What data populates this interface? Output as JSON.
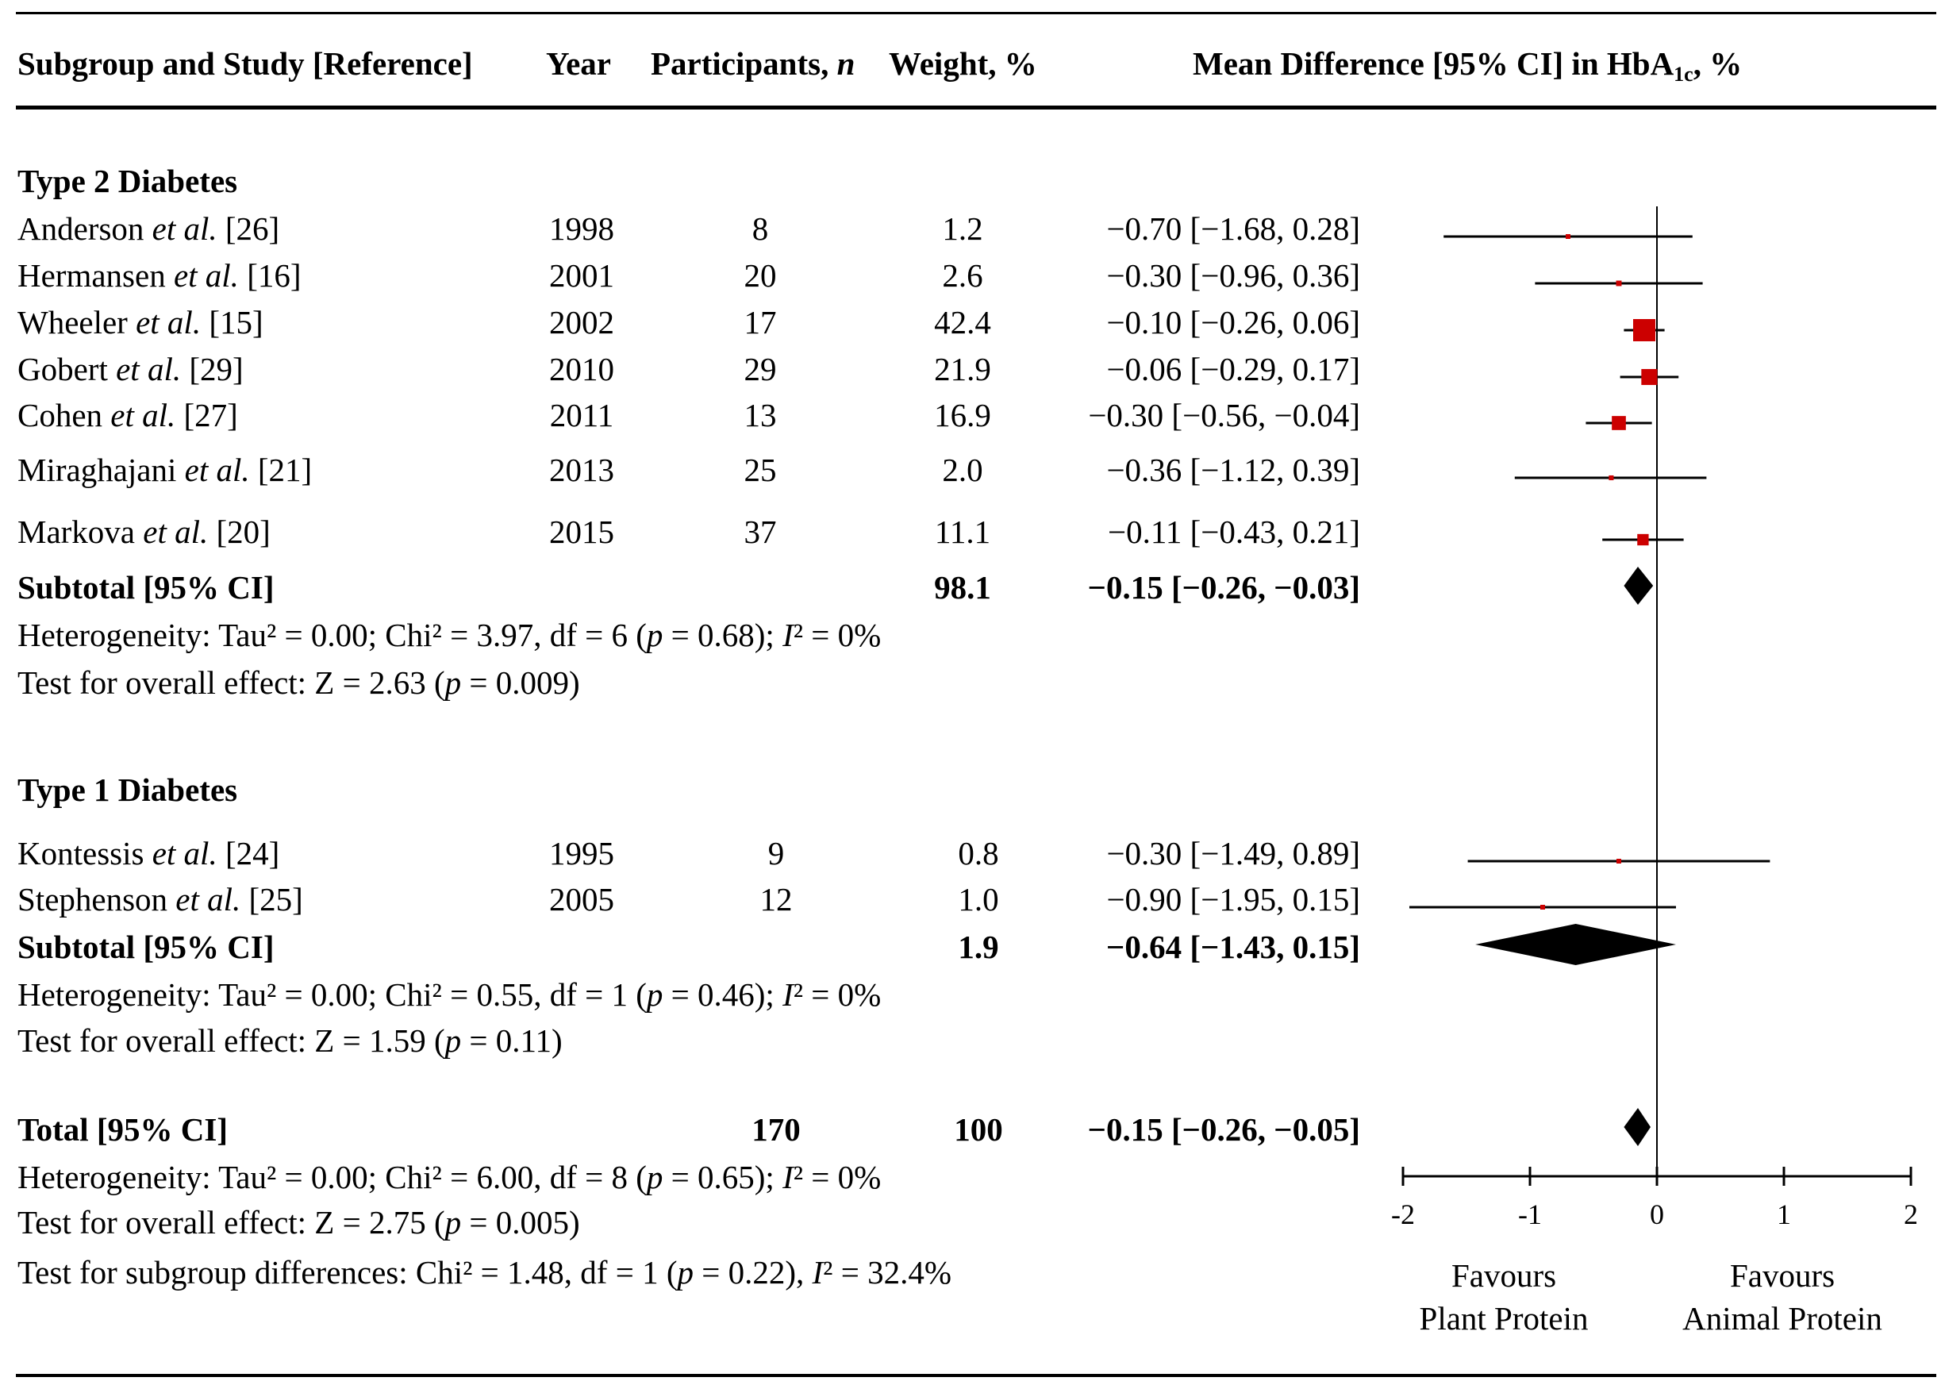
{
  "columns": {
    "study": "Subgroup and Study [Reference]",
    "year": "Year",
    "participants_prefix": "Participants, ",
    "participants_n": "n",
    "weight": "Weight, %",
    "md_prefix": "Mean Difference  [95% CI] in HbA",
    "md_sub": "1c",
    "md_suffix": ", %"
  },
  "groups": [
    {
      "title": "Type 2 Diabetes",
      "studies": [
        {
          "author": "Anderson",
          "etal": "et al.",
          "ref": "[26]",
          "year": "1998",
          "n": "8",
          "weight": "1.2",
          "ci_text": "−0.70 [−1.68, 0.28]"
        },
        {
          "author": "Hermansen",
          "etal": "et al.",
          "ref": "[16]",
          "year": "2001",
          "n": "20",
          "weight": "2.6",
          "ci_text": "−0.30 [−0.96, 0.36]"
        },
        {
          "author": "Wheeler",
          "etal": "et al.",
          "ref": "[15]",
          "year": "2002",
          "n": "17",
          "weight": "42.4",
          "ci_text": "−0.10 [−0.26, 0.06]"
        },
        {
          "author": "Gobert",
          "etal": "et al.",
          "ref": "[29]",
          "year": "2010",
          "n": "29",
          "weight": "21.9",
          "ci_text": "−0.06 [−0.29, 0.17]"
        },
        {
          "author": "Cohen",
          "etal": "et al.",
          "ref": "[27]",
          "year": "2011",
          "n": "13",
          "weight": "16.9",
          "ci_text": "−0.30 [−0.56, −0.04]"
        },
        {
          "author": "Miraghajani",
          "etal": "et al.",
          "ref": "[21]",
          "year": "2013",
          "n": "25",
          "weight": "2.0",
          "ci_text": "−0.36 [−1.12, 0.39]"
        },
        {
          "author": "Markova",
          "etal": "et al.",
          "ref": "[20]",
          "year": "2015",
          "n": "37",
          "weight": "11.1",
          "ci_text": "−0.11 [−0.43, 0.21]"
        }
      ],
      "subtotal": {
        "label": "Subtotal [95% CI]",
        "weight": "98.1",
        "ci_text": "−0.15 [−0.26, −0.03]"
      },
      "heterogeneity": "Heterogeneity:  Tau² = 0.00; Chi² = 3.97, df = 6 (p = 0.68); I² = 0%",
      "overall_effect": "Test for overall effect: Z = 2.63 (p = 0.009)"
    },
    {
      "title": "Type 1 Diabetes",
      "studies": [
        {
          "author": "Kontessis",
          "etal": "et al.",
          "ref": "[24]",
          "year": "1995",
          "n": "9",
          "weight": "0.8",
          "ci_text": "−0.30 [−1.49, 0.89]"
        },
        {
          "author": "Stephenson",
          "etal": "et al.",
          "ref": "[25]",
          "year": "2005",
          "n": "12",
          "weight": "1.0",
          "ci_text": "−0.90 [−1.95, 0.15]"
        }
      ],
      "subtotal": {
        "label": "Subtotal [95% CI]",
        "weight": "1.9",
        "ci_text": "−0.64 [−1.43, 0.15]"
      },
      "heterogeneity": "Heterogeneity: Tau² = 0.00; Chi² = 0.55, df = 1 (p = 0.46); I² = 0%",
      "overall_effect": "Test for overall effect: Z = 1.59 (p = 0.11)"
    }
  ],
  "total": {
    "label": "Total [95% CI]",
    "n": "170",
    "weight": "100",
    "ci_text": "−0.15 [−0.26, −0.05]",
    "heterogeneity": "Heterogeneity: Tau² = 0.00; Chi² = 6.00, df = 8 (p = 0.65); I² = 0%",
    "overall_effect": "Test for overall effect: Z = 2.75 (p = 0.005)",
    "subgroup_diff": "Test for subgroup differences: Chi² = 1.48, df = 1 (p = 0.22), I² = 32.4%"
  },
  "axis_labels": {
    "left_1": "Favours",
    "left_2": "Plant Protein",
    "right_1": "Favours",
    "right_2": "Animal Protein"
  },
  "colors": {
    "marker": "#cc0000",
    "ink": "#000000"
  },
  "chart_data": {
    "type": "forest",
    "title": "Mean Difference [95% CI] in HbA1c, %",
    "xlim": [
      -2,
      2
    ],
    "ticks": [
      -2,
      -1,
      0,
      1,
      2
    ],
    "tick_labels": [
      "-2",
      "-1",
      "0",
      "1",
      "2"
    ],
    "reference_line": 0,
    "studies": [
      {
        "group": "Type 2 Diabetes",
        "md": -0.7,
        "lo": -1.68,
        "hi": 0.28,
        "weight": 1.2
      },
      {
        "group": "Type 2 Diabetes",
        "md": -0.3,
        "lo": -0.96,
        "hi": 0.36,
        "weight": 2.6
      },
      {
        "group": "Type 2 Diabetes",
        "md": -0.1,
        "lo": -0.26,
        "hi": 0.06,
        "weight": 42.4
      },
      {
        "group": "Type 2 Diabetes",
        "md": -0.06,
        "lo": -0.29,
        "hi": 0.17,
        "weight": 21.9
      },
      {
        "group": "Type 2 Diabetes",
        "md": -0.3,
        "lo": -0.56,
        "hi": -0.04,
        "weight": 16.9
      },
      {
        "group": "Type 2 Diabetes",
        "md": -0.36,
        "lo": -1.12,
        "hi": 0.39,
        "weight": 2.0
      },
      {
        "group": "Type 2 Diabetes",
        "md": -0.11,
        "lo": -0.43,
        "hi": 0.21,
        "weight": 11.1
      },
      {
        "group": "Type 1 Diabetes",
        "md": -0.3,
        "lo": -1.49,
        "hi": 0.89,
        "weight": 0.8
      },
      {
        "group": "Type 1 Diabetes",
        "md": -0.9,
        "lo": -1.95,
        "hi": 0.15,
        "weight": 1.0
      }
    ],
    "pooled": [
      {
        "label": "Subtotal Type 2",
        "md": -0.15,
        "lo": -0.26,
        "hi": -0.03
      },
      {
        "label": "Subtotal Type 1",
        "md": -0.64,
        "lo": -1.43,
        "hi": 0.15
      },
      {
        "label": "Total",
        "md": -0.15,
        "lo": -0.26,
        "hi": -0.05
      }
    ]
  }
}
